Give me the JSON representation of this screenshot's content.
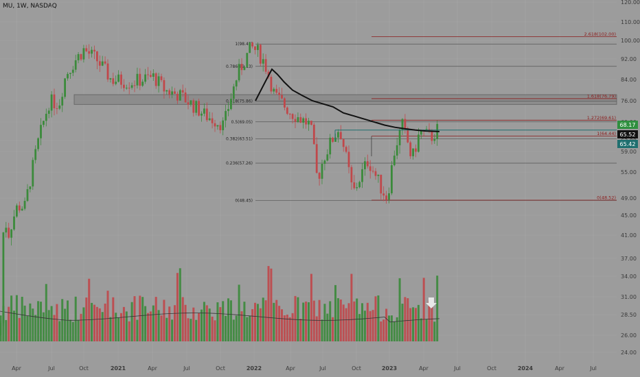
{
  "header": {
    "ticker": "MU, 1W, NASDAQ"
  },
  "colors": {
    "background": "#9c9c9c",
    "up": "#3b8a3b",
    "down": "#c0474a",
    "ema": "#111111",
    "fib_retrace": "#555555",
    "fib_ext": "#8b1a1a",
    "zone": "#555555",
    "breakout": "#1f6f6f"
  },
  "chart_data": {
    "type": "candlestick",
    "y_ticks": [
      "120.00",
      "110.00",
      "100.00",
      "92.00",
      "84.00",
      "76.00",
      "69.00",
      "63.00",
      "59.00",
      "55.00",
      "49.00",
      "45.00",
      "41.00",
      "37.00",
      "34.00",
      "31.00",
      "28.50",
      "26.00",
      "24.00"
    ],
    "x_ticks": [
      "Apr",
      "Jul",
      "Oct",
      "2021",
      "Apr",
      "Jul",
      "Oct",
      "2022",
      "Apr",
      "Jul",
      "Oct",
      "2023",
      "Apr",
      "Jul",
      "Oct",
      "2024",
      "Apr",
      "Jul"
    ],
    "fib_retracement": [
      {
        "label": "1(98.45)",
        "value": 98.45
      },
      {
        "label": "0.786(89.13)",
        "value": 89.13
      },
      {
        "label": "0.618(75.86)",
        "value": 75.86
      },
      {
        "label": "0.5(69.05)",
        "value": 69.05
      },
      {
        "label": "0.382(63.51)",
        "value": 63.51
      },
      {
        "label": "0.236(57.26)",
        "value": 57.26
      },
      {
        "label": "0(48.45)",
        "value": 48.45
      }
    ],
    "fib_extension": [
      {
        "label": "2.618(102.00)",
        "value": 102.0
      },
      {
        "label": "1.618(76.79)",
        "value": 76.79
      },
      {
        "label": "1.272(69.61)",
        "value": 69.61
      },
      {
        "label": "1(64.44)",
        "value": 64.44
      },
      {
        "label": "0(48.52)",
        "value": 48.52
      }
    ],
    "price_labels": [
      {
        "text": "68.17",
        "value": 68.17,
        "color": "#2f8f3f"
      },
      {
        "text": "65.52",
        "value": 65.52,
        "color": "#111111"
      },
      {
        "text": "65.42",
        "value": 65.42,
        "color": "#1f6f6f"
      }
    ],
    "resistance_zone": [
      74.8,
      78.3
    ],
    "breakout_level": 66.4,
    "neckline_level": 64.4
  }
}
